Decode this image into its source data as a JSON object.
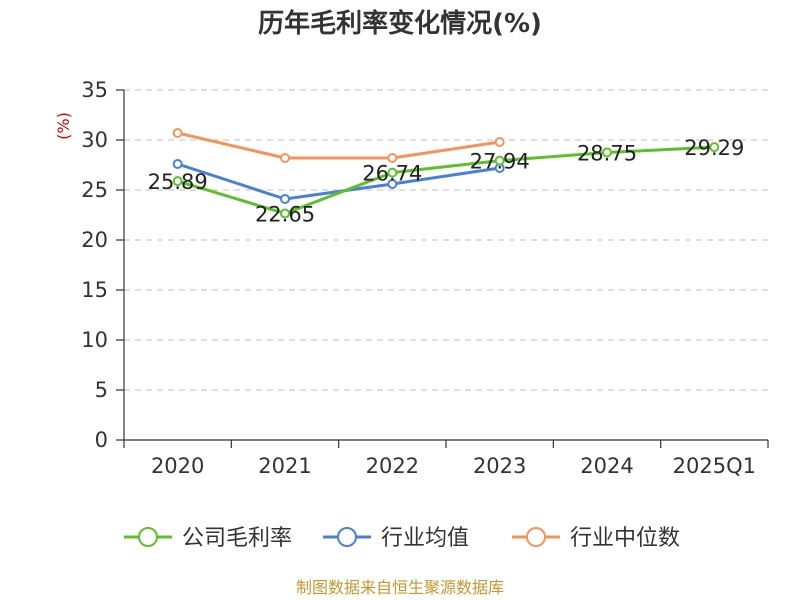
{
  "chart_data": {
    "type": "line",
    "title": "历年毛利率变化情况(%)",
    "ylabel": "(%)",
    "xlabel": "",
    "categories": [
      "2020",
      "2021",
      "2022",
      "2023",
      "2024",
      "2025Q1"
    ],
    "ylim": [
      0,
      35
    ],
    "yticks": [
      0,
      5,
      10,
      15,
      20,
      25,
      30,
      35
    ],
    "grid": true,
    "legend_position": "bottom",
    "series": [
      {
        "name": "公司毛利率",
        "color": "#5cc02a",
        "values": [
          25.89,
          22.65,
          26.74,
          27.94,
          28.75,
          29.29
        ],
        "labels": [
          "25.89",
          "22.65",
          "26.74",
          "27.94",
          "28.75",
          "29.29"
        ]
      },
      {
        "name": "行业均值",
        "color": "#4a7fd8",
        "values": [
          27.6,
          24.1,
          25.6,
          27.2,
          null,
          null
        ]
      },
      {
        "name": "行业中位数",
        "color": "#f7925a",
        "values": [
          30.7,
          28.2,
          28.2,
          29.8,
          null,
          null
        ]
      }
    ],
    "source": "制图数据来自恒生聚源数据库"
  }
}
